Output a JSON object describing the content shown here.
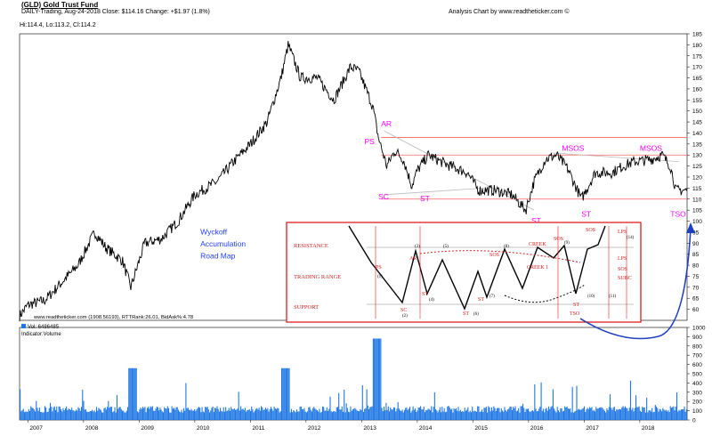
{
  "header": {
    "title": "(GLD) Gold Trust Fund",
    "subtitle": "DAILY-Trading,  Aug-24-2018  Close: $114.16  Change: +$1.97  (1.8%)",
    "analysis": "Analysis Chart by www.readtheticker.com ©",
    "ohlc": "Hi:114.4, Lo:113.2, Cl:114.2"
  },
  "footer": {
    "price_note": "www.readtheticker.com (1908.56193), RTTRank:26.01, BidAsk%:4.78",
    "vol": "Vol: 6486485",
    "indicator": "Indicator:Volume"
  },
  "chart_data": [
    {
      "type": "line",
      "name": "price",
      "ylim": [
        55,
        185
      ],
      "yticks": [
        60,
        65,
        70,
        75,
        80,
        85,
        90,
        95,
        100,
        105,
        110,
        115,
        120,
        125,
        130,
        135,
        140,
        145,
        150,
        155,
        160,
        165,
        170,
        175,
        180,
        185
      ],
      "x_start": 2006.85,
      "x_end": 2018.85,
      "xticks": [
        "2007",
        "2008",
        "2009",
        "2010",
        "2011",
        "2012",
        "2013",
        "2014",
        "2015",
        "2016",
        "2017",
        "2018"
      ],
      "x": [
        2006.85,
        2007.0,
        2007.3,
        2007.6,
        2007.9,
        2008.2,
        2008.4,
        2008.7,
        2008.85,
        2009.1,
        2009.4,
        2009.7,
        2010.0,
        2010.4,
        2010.7,
        2011.0,
        2011.3,
        2011.55,
        2011.68,
        2011.9,
        2012.2,
        2012.5,
        2012.8,
        2012.95,
        2013.2,
        2013.3,
        2013.45,
        2013.6,
        2013.75,
        2013.9,
        2014.0,
        2014.2,
        2014.5,
        2014.9,
        2015.1,
        2015.4,
        2015.7,
        2015.95,
        2016.1,
        2016.3,
        2016.5,
        2016.7,
        2016.95,
        2017.2,
        2017.5,
        2017.7,
        2017.9,
        2018.2,
        2018.4,
        2018.55,
        2018.65
      ],
      "y": [
        57,
        62,
        64,
        72,
        80,
        95,
        88,
        82,
        70,
        90,
        92,
        100,
        112,
        118,
        127,
        135,
        145,
        165,
        180,
        165,
        165,
        155,
        170,
        168,
        152,
        138,
        125,
        132,
        128,
        116,
        123,
        130,
        126,
        122,
        114,
        114,
        112,
        105,
        118,
        128,
        130,
        124,
        110,
        122,
        122,
        125,
        127,
        128,
        130,
        125,
        114
      ],
      "labels": [
        "PS",
        "AR",
        "SC",
        "ST",
        "ST",
        "ST",
        "MSOS",
        "MSOS",
        "TSO"
      ],
      "annotation": [
        "Wyckoff",
        "Accumulation",
        "Road Map"
      ],
      "levels": [
        138,
        130,
        110
      ]
    },
    {
      "type": "bar",
      "name": "volume",
      "ylim": [
        0,
        1000
      ],
      "yticks": [
        0,
        100,
        200,
        300,
        400,
        500,
        600,
        700,
        800,
        900,
        1000
      ]
    }
  ],
  "inset": {
    "rows": [
      "RESISTANCE",
      "TRADING RANGE",
      "SUPPORT"
    ],
    "labels": [
      "PS",
      "SC",
      "AR",
      "ST",
      "ST",
      "ST",
      "SOS",
      "SOS",
      "LPS",
      "SOS",
      "ST",
      "TSO",
      "CREEK",
      "CREEK 1",
      "LPS",
      "SOS",
      "SUBC",
      "(1)",
      "(2)",
      "(3)",
      "(4)",
      "(5)",
      "(6)",
      "(7)",
      "(8)",
      "(9)",
      "(10)",
      "(11)",
      "(14)"
    ]
  },
  "colors": {
    "label": "#ff00ff",
    "annot": "#1f3fff",
    "level": "#ff6060",
    "volume": "#1f77e4",
    "inset_border": "#e02020",
    "inset_text": "#d02020",
    "arrow": "#1f3fbf"
  }
}
